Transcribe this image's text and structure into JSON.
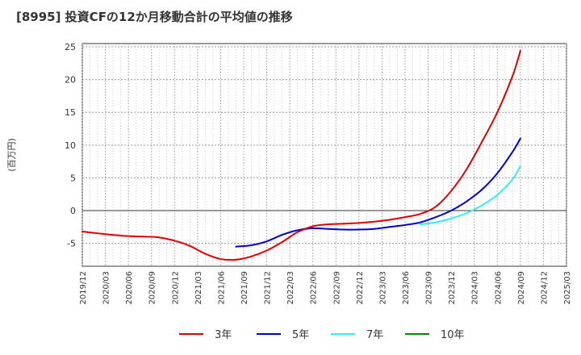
{
  "chart_data": {
    "type": "line",
    "title": "[8995]  投資CFの12か月移動合計の平均値の推移",
    "ylabel": "(百万円)",
    "xlabel": "",
    "ylim": [
      -8.5,
      25.5
    ],
    "yticks": [
      25,
      20,
      15,
      10,
      5,
      0,
      -5
    ],
    "xticks": [
      "2019/12",
      "2020/03",
      "2020/06",
      "2020/09",
      "2020/12",
      "2021/03",
      "2021/06",
      "2021/09",
      "2021/12",
      "2022/03",
      "2022/06",
      "2022/09",
      "2022/12",
      "2023/03",
      "2023/06",
      "2023/09",
      "2023/12",
      "2024/03",
      "2024/06",
      "2024/09",
      "2024/12",
      "2025/03"
    ],
    "grid": true,
    "legend_position": "bottom",
    "colors": {
      "3年": "#dd0000",
      "5年": "#0000cc",
      "7年": "#33eeee",
      "10年": "#008800"
    },
    "series": [
      {
        "name": "3年",
        "x": [
          "2019/12",
          "2020/03",
          "2020/06",
          "2020/09",
          "2020/10",
          "2020/12",
          "2021/02",
          "2021/04",
          "2021/06",
          "2021/08",
          "2021/10",
          "2021/12",
          "2022/02",
          "2022/04",
          "2022/06",
          "2022/08",
          "2022/10",
          "2022/12",
          "2023/02",
          "2023/04",
          "2023/06",
          "2023/08",
          "2023/10",
          "2023/12",
          "2024/02",
          "2024/04",
          "2024/06",
          "2024/08",
          "2024/09"
        ],
        "values": [
          -3.2,
          -3.6,
          -3.9,
          -4.0,
          -4.1,
          -4.6,
          -5.4,
          -6.6,
          -7.4,
          -7.5,
          -7.0,
          -6.1,
          -4.8,
          -3.3,
          -2.4,
          -2.1,
          -2.0,
          -1.9,
          -1.7,
          -1.4,
          -1.0,
          -0.5,
          0.6,
          3.0,
          6.3,
          10.5,
          15.0,
          20.6,
          24.4
        ]
      },
      {
        "name": "5年",
        "x": [
          "2021/08",
          "2021/10",
          "2021/12",
          "2022/02",
          "2022/04",
          "2022/06",
          "2022/08",
          "2022/10",
          "2022/12",
          "2023/02",
          "2023/04",
          "2023/06",
          "2023/08",
          "2023/10",
          "2023/12",
          "2024/02",
          "2024/04",
          "2024/06",
          "2024/08",
          "2024/09"
        ],
        "values": [
          -5.5,
          -5.3,
          -4.7,
          -3.7,
          -3.0,
          -2.7,
          -2.8,
          -2.9,
          -2.9,
          -2.8,
          -2.5,
          -2.2,
          -1.8,
          -1.0,
          0.0,
          1.4,
          3.2,
          5.7,
          9.0,
          11.0
        ]
      },
      {
        "name": "7年",
        "x": [
          "2023/08",
          "2023/10",
          "2023/12",
          "2024/02",
          "2024/04",
          "2024/06",
          "2024/08",
          "2024/09"
        ],
        "values": [
          -2.1,
          -1.8,
          -1.2,
          -0.4,
          0.8,
          2.4,
          4.8,
          6.8
        ]
      },
      {
        "name": "10年",
        "x": [],
        "values": []
      }
    ]
  }
}
